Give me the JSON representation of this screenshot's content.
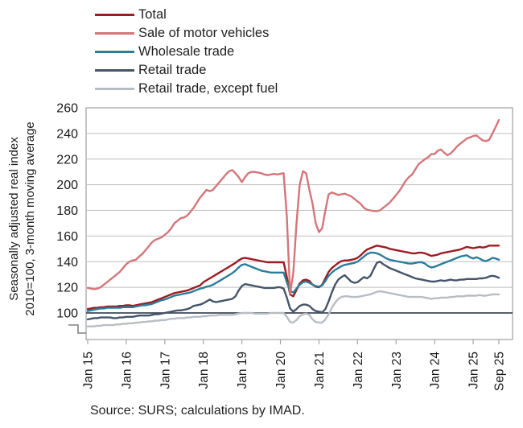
{
  "y_axis": {
    "label_line1": "Seasonally adjusted real index",
    "label_line2": "2010=100, 3-month moving average"
  },
  "source": "Source: SURS; calculations by IMAD.",
  "colors": {
    "grid": "#BFBFBF",
    "frame": "#A6A6A6",
    "baseline": "#3E4A55",
    "text": "#1a1a1a"
  },
  "chart_data": {
    "type": "line",
    "title": "",
    "xlabel": "",
    "ylabel": "Seasonally adjusted real index 2010=100, 3-month moving average",
    "x_frequency": "monthly",
    "x_start": "Jan 2015",
    "x_end": "Sep 2025",
    "x_tick_labels": [
      "Jan 15",
      "Jan 16",
      "Jan 17",
      "Jan 18",
      "Jan 19",
      "Jan 20",
      "Jan 21",
      "Jan 22",
      "Jan 23",
      "Jan 24",
      "Jan 25",
      "Sep 25"
    ],
    "x_tick_month_indices": [
      0,
      12,
      24,
      36,
      48,
      60,
      72,
      84,
      96,
      108,
      120,
      128
    ],
    "y_ticks": [
      100,
      120,
      140,
      160,
      180,
      200,
      220,
      240,
      260
    ],
    "ylim": [
      100,
      260
    ],
    "baseline_value": 100,
    "axis_break": true,
    "grid": "horizontal",
    "legend_position": "top-left",
    "series": [
      {
        "name": "Total",
        "color": "#9B1C21",
        "values": [
          103,
          103.5,
          104,
          104,
          104.5,
          104.5,
          105,
          105,
          105,
          105,
          105.5,
          105.5,
          106,
          106,
          105.5,
          106,
          106.5,
          107,
          107.5,
          108,
          108.5,
          109.5,
          110.5,
          111.5,
          112.5,
          113.5,
          114.5,
          115.5,
          116,
          116.5,
          117,
          117.5,
          118.5,
          119.5,
          120.5,
          121.5,
          124,
          125.5,
          127,
          128.5,
          130,
          131.5,
          133,
          134.5,
          136,
          137.5,
          139,
          141,
          142.5,
          143,
          142.5,
          142,
          141.5,
          141,
          140.5,
          140,
          139.5,
          139.5,
          139.5,
          139.5,
          139.5,
          139.5,
          128,
          114.5,
          113,
          118,
          123,
          125.5,
          126,
          125,
          122,
          120.5,
          120,
          122,
          127,
          132,
          135,
          137,
          139,
          140.5,
          141,
          141,
          141.5,
          142,
          143,
          145,
          147.5,
          149.5,
          150.5,
          151.5,
          152.5,
          152,
          151.5,
          151,
          150,
          149.5,
          149,
          148.5,
          148,
          147.5,
          147,
          146.5,
          146.5,
          147,
          147,
          146.5,
          145.5,
          144.5,
          145,
          145.5,
          146.5,
          147,
          147.5,
          148,
          148.5,
          149,
          149.5,
          150.5,
          151.5,
          151,
          150.5,
          151,
          151.5,
          151,
          151.5,
          152.5,
          152.5,
          152.5,
          152.5
        ]
      },
      {
        "name": "Sale of motor vehicles",
        "color": "#D3767A",
        "values": [
          119.5,
          119,
          118.5,
          119,
          120,
          122,
          124,
          126,
          128,
          130,
          132,
          135,
          138,
          140,
          141,
          141.5,
          144,
          146,
          149,
          152,
          155,
          157,
          158,
          159,
          161,
          163,
          166,
          170,
          172,
          174,
          174.5,
          176,
          179,
          182,
          186,
          190,
          193,
          196,
          195,
          196,
          199,
          202,
          205,
          208,
          210.5,
          211.5,
          209,
          206,
          202,
          206,
          209,
          210,
          210,
          209.5,
          209,
          208,
          207.5,
          208,
          208.5,
          208,
          208.5,
          209,
          175,
          115,
          131,
          170,
          200,
          210.5,
          209,
          196,
          185,
          170,
          163,
          166,
          180,
          192.5,
          194,
          193,
          192,
          192.5,
          193,
          192,
          191,
          189,
          187,
          185,
          182,
          180.5,
          180,
          179.5,
          179.5,
          180,
          182,
          184,
          186,
          189,
          192,
          195,
          199,
          203,
          206,
          208,
          212,
          216,
          218,
          220,
          221.5,
          224,
          224,
          226.5,
          227.5,
          225,
          223,
          224.5,
          227,
          230,
          232,
          234,
          236,
          237,
          238,
          238.5,
          236.5,
          234.5,
          234,
          235,
          240,
          245,
          250.5
        ]
      },
      {
        "name": "Wholesale trade",
        "color": "#2B7D9B",
        "values": [
          101.5,
          102,
          102.5,
          103,
          103.5,
          103.5,
          104,
          104,
          104,
          104,
          104,
          104.5,
          104.5,
          104.5,
          104.5,
          105,
          105.5,
          106,
          106,
          106.5,
          107,
          108,
          109,
          110,
          110.5,
          111.5,
          112.5,
          113.5,
          114,
          114.5,
          115,
          115.5,
          116,
          117,
          118,
          119,
          119.5,
          120.5,
          121,
          122,
          123.5,
          125,
          126.5,
          128,
          129.5,
          131,
          133,
          135.5,
          137.5,
          138,
          137,
          136,
          135,
          134,
          133,
          132.5,
          132,
          131.5,
          131.5,
          131.5,
          131.5,
          131.5,
          124,
          117,
          116,
          119,
          122,
          124,
          124.5,
          123.5,
          122,
          121,
          120.5,
          121.5,
          125,
          129,
          131.5,
          133.5,
          135,
          136.5,
          137.5,
          138,
          138.5,
          139,
          140,
          142,
          144,
          146,
          147,
          147,
          146.5,
          145.5,
          144,
          142.5,
          141.5,
          141,
          140.5,
          140,
          139.5,
          139,
          138.5,
          138.5,
          139,
          139.5,
          139.5,
          138.5,
          136.5,
          135.5,
          136,
          137,
          138,
          139,
          140,
          141,
          142,
          143,
          144,
          144.5,
          145,
          143.5,
          142.5,
          143.5,
          142.5,
          141,
          140.5,
          141.5,
          143,
          142.5,
          141.5
        ]
      },
      {
        "name": "Retail trade",
        "color": "#44546A",
        "values": [
          95,
          95.5,
          96,
          96,
          96.5,
          96.5,
          96.5,
          96.5,
          96,
          96,
          96.5,
          96.5,
          97,
          97,
          97,
          97.5,
          98,
          98,
          98,
          98,
          98.5,
          99,
          99,
          99.5,
          100,
          100.5,
          101,
          101.5,
          102,
          102,
          102.5,
          103,
          104,
          105.5,
          106,
          106.5,
          107.5,
          109,
          110.5,
          109,
          108.5,
          109,
          109.5,
          110,
          110.5,
          111,
          113,
          117.5,
          121,
          122.5,
          122,
          121.5,
          121,
          120.5,
          120,
          119.5,
          119.5,
          119.5,
          119.5,
          120,
          120,
          119,
          112,
          103.5,
          101,
          103,
          105.5,
          106.5,
          106.5,
          105.5,
          103,
          101.5,
          101,
          100.5,
          103,
          109,
          116,
          122,
          126,
          128,
          129.5,
          127,
          124.5,
          123.5,
          124,
          126,
          128,
          127,
          129,
          134,
          139,
          140,
          138,
          136.5,
          135,
          134,
          133,
          132,
          131,
          130,
          129,
          128,
          127,
          126.5,
          126,
          125.5,
          125,
          124.5,
          124.5,
          125,
          125.5,
          125,
          125.5,
          126,
          125.5,
          125.5,
          126,
          126,
          126.5,
          126.5,
          126.5,
          126.5,
          127,
          127,
          127.5,
          128.5,
          129,
          128.5,
          127.5
        ]
      },
      {
        "name": "Retail trade, except fuel",
        "color": "#B7BDC4",
        "values": [
          89.5,
          89.5,
          89.5,
          90,
          90,
          90.5,
          90.5,
          90.5,
          90.5,
          91,
          91,
          91.5,
          91.5,
          92,
          92,
          92.5,
          92.5,
          93,
          93,
          93.5,
          93.5,
          94,
          94,
          94.5,
          94.5,
          95,
          95.5,
          95.5,
          96,
          96,
          96,
          96.5,
          96.5,
          97,
          97,
          97,
          97.5,
          97.5,
          98,
          98,
          98,
          98.5,
          98.5,
          98.5,
          98.5,
          98.5,
          99,
          99.5,
          100,
          100,
          100,
          100,
          99.5,
          99.5,
          99.5,
          99.5,
          99.5,
          100,
          100,
          100,
          100,
          100,
          97,
          93,
          92.5,
          94.5,
          97.5,
          99,
          99.5,
          98.5,
          95,
          93,
          92.5,
          92.5,
          95,
          99,
          104,
          108,
          111,
          112.5,
          113,
          113,
          112.5,
          112.5,
          112.5,
          113,
          113.5,
          114,
          114.5,
          115.5,
          116.5,
          117,
          116.5,
          116,
          115.5,
          115,
          114.5,
          114,
          113.5,
          113,
          112.5,
          112.5,
          112.5,
          112.5,
          112.5,
          112,
          111.5,
          111,
          111.5,
          111.5,
          112,
          112,
          112,
          112.5,
          112.5,
          113,
          113,
          113,
          113.5,
          113.5,
          113.5,
          113.5,
          114,
          113.5,
          113.5,
          114,
          114.5,
          114.5,
          114.5
        ]
      }
    ]
  }
}
